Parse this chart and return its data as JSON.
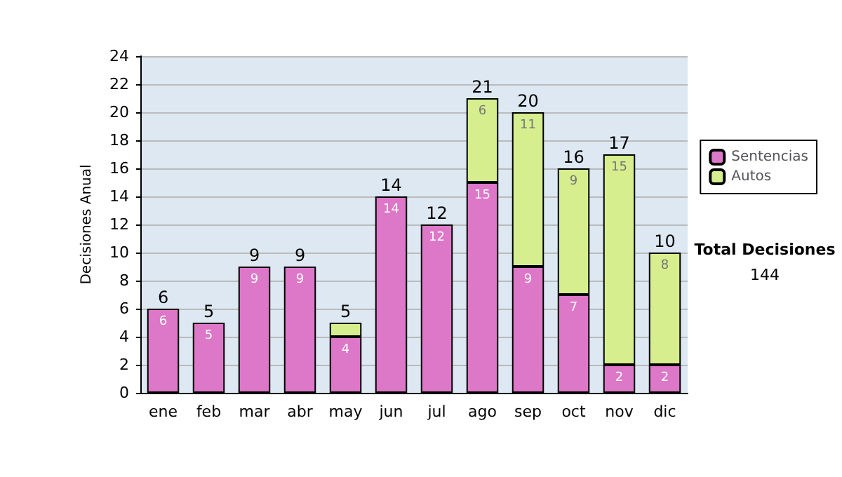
{
  "chart_data": {
    "type": "bar",
    "stacked": true,
    "ylabel": "Decisiones Anual",
    "categories": [
      "ene",
      "feb",
      "mar",
      "abr",
      "may",
      "jun",
      "jul",
      "ago",
      "sep",
      "oct",
      "nov",
      "dic"
    ],
    "series": [
      {
        "name": "Sentencias",
        "color": "#dd77c8",
        "values": [
          6,
          5,
          9,
          9,
          4,
          14,
          12,
          15,
          9,
          7,
          2,
          2
        ],
        "value_labels": [
          "6",
          "5",
          "9",
          "9",
          "4",
          "14",
          "12",
          "15",
          "9",
          "7",
          "2",
          "2"
        ]
      },
      {
        "name": "Autos",
        "color": "#d6ee8e",
        "values": [
          0,
          0,
          0,
          0,
          1,
          0,
          0,
          6,
          11,
          9,
          15,
          8
        ],
        "value_labels": [
          null,
          null,
          null,
          null,
          null,
          null,
          null,
          "6",
          "11",
          "9",
          "15",
          "8"
        ]
      }
    ],
    "totals": [
      "6",
      "5",
      "9",
      "9",
      "5",
      "14",
      "12",
      "21",
      "20",
      "16",
      "17",
      "10"
    ],
    "ylim": [
      0,
      24
    ],
    "yticks": [
      0,
      2,
      4,
      6,
      8,
      10,
      12,
      14,
      16,
      18,
      20,
      22,
      24
    ],
    "grid": "y",
    "legend": "right",
    "annotations": [
      "Total Decisiones",
      "144"
    ]
  }
}
